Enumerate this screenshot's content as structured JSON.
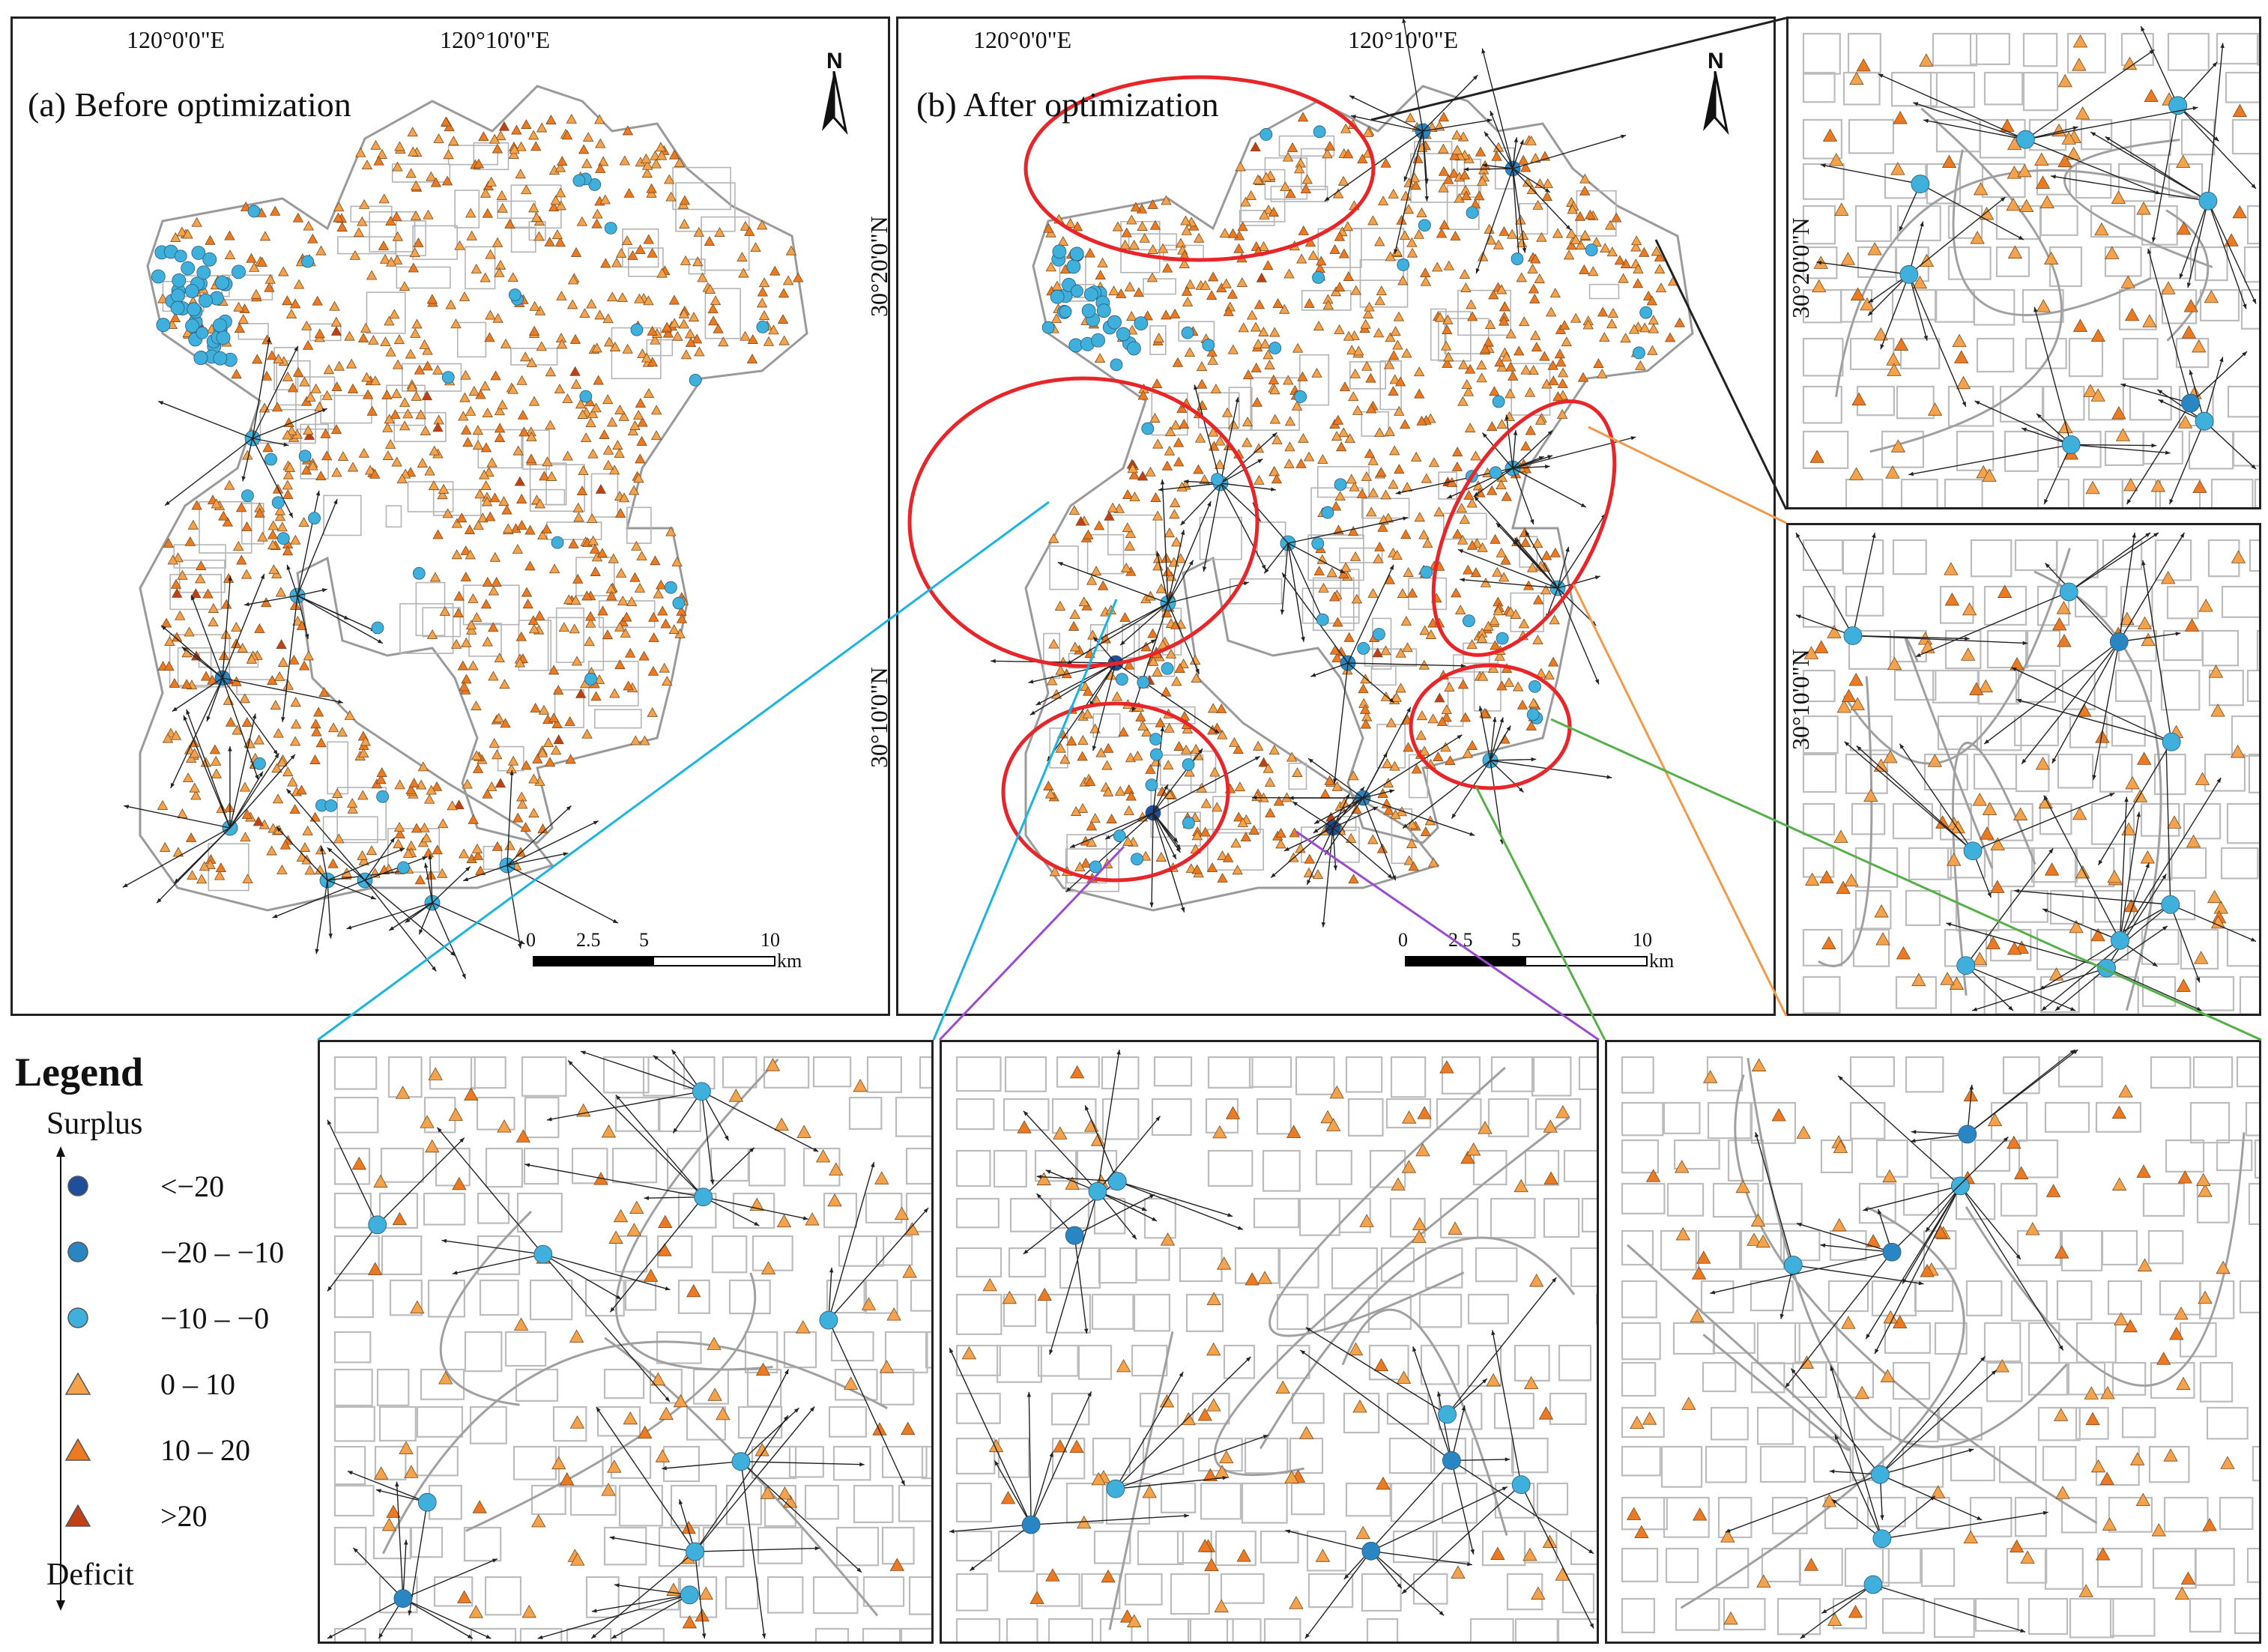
{
  "panels": {
    "before": {
      "title": "(a) Before optimization",
      "lon_labels": [
        "120°0'0\"E",
        "120°10'0\"E"
      ],
      "lat_labels": [
        "30°20'0\"N",
        "30°10'0\"N"
      ]
    },
    "after": {
      "title": "(b) After optimization",
      "lon_labels": [
        "120°0'0\"E",
        "120°10'0\"E"
      ],
      "lat_labels": [
        "30°20'0\"N",
        "30°10'0\"N"
      ]
    }
  },
  "inset_labels": {
    "top_right_lat": "30°20'0\"N",
    "mid_right_lat": "30°10'0\"N"
  },
  "north_arrow": {
    "label": "N"
  },
  "scale_bar": {
    "ticks": [
      "0",
      "2.5",
      "5",
      "10"
    ],
    "unit": "km"
  },
  "legend": {
    "title": "Legend",
    "top_label": "Surplus",
    "bottom_label": "Deficit",
    "items": [
      {
        "label": "<−20",
        "symbol": "circle",
        "color": "#1f4e9a"
      },
      {
        "label": "−20 – −10",
        "symbol": "circle",
        "color": "#2a86c3"
      },
      {
        "label": "−10 – −0",
        "symbol": "circle",
        "color": "#3fb0dc"
      },
      {
        "label": "0 – 10",
        "symbol": "triangle",
        "color": "#f4a24c"
      },
      {
        "label": "10 – 20",
        "symbol": "triangle",
        "color": "#ec7a23"
      },
      {
        "label": ">20",
        "symbol": "triangle",
        "color": "#c0401a"
      }
    ]
  },
  "colors": {
    "highlight_ellipse": "#e8262a",
    "road": "#9a9a9a",
    "flow_line": "#222222",
    "leader_cyan": "#1bb4e0",
    "leader_orange": "#f39a4a",
    "leader_purple": "#9a4bd0",
    "leader_green": "#55b04a",
    "leader_black": "#222222"
  }
}
